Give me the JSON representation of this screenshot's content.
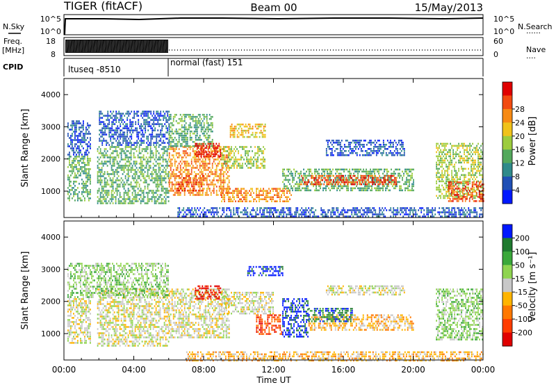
{
  "header": {
    "title": "TIGER (fitACF)",
    "beam": "Beam 00",
    "date": "15/May/2013"
  },
  "left_labels": {
    "nsky": "N.Sky",
    "freq_line1": "Freq.",
    "freq_line2": "[MHz]",
    "cpid": "CPID"
  },
  "right_labels": {
    "nsearch": "N.Search",
    "nave": "Nave",
    "legend_dots": "......",
    "nave_dots": "...."
  },
  "nsky_ticks": [
    "10^5",
    "10^0"
  ],
  "nsearch_ticks": [
    "10^5",
    "10^0"
  ],
  "freq_ticks": [
    "18",
    "8"
  ],
  "nave_ticks": [
    "60",
    "0"
  ],
  "cpid": [
    {
      "label": "ltuseq -8510",
      "start_hour": 0,
      "end_hour": 6
    },
    {
      "label": "normal (fast) 151",
      "start_hour": 6,
      "end_hour": 24
    }
  ],
  "x_axis": {
    "label": "Time UT",
    "ticks": [
      "00:00",
      "04:00",
      "08:00",
      "12:00",
      "16:00",
      "20:00",
      "00:00"
    ],
    "tick_hours": [
      0,
      4,
      8,
      12,
      16,
      20,
      24
    ]
  },
  "chart_data": [
    {
      "type": "heatmap",
      "name": "power",
      "ylabel": "Slant Range [km]",
      "ylim": [
        180,
        4500
      ],
      "yticks": [
        1000,
        2000,
        3000,
        4000
      ],
      "xlim": [
        0,
        24
      ],
      "colorbar": {
        "label": "Power [dB]",
        "ticks": [
          "4",
          "8",
          "12",
          "16",
          "20",
          "24",
          "28"
        ],
        "colors": [
          "#0018ff",
          "#1f4fb5",
          "#2f8a8a",
          "#53a85c",
          "#9ccc3d",
          "#f0c21a",
          "#f78a14",
          "#f24a10",
          "#e00000"
        ]
      },
      "bands": [
        {
          "h0": 0.2,
          "h1": 1.5,
          "r0": 700,
          "r1": 2100,
          "c": 3
        },
        {
          "h0": 0.2,
          "h1": 1.5,
          "r0": 2100,
          "r1": 3200,
          "c": 1
        },
        {
          "h0": 1.9,
          "h1": 6.0,
          "r0": 600,
          "r1": 2400,
          "c": 3
        },
        {
          "h0": 2.0,
          "h1": 6.0,
          "r0": 2400,
          "r1": 3500,
          "c": 1
        },
        {
          "h0": 6.0,
          "h1": 9.5,
          "r0": 900,
          "r1": 2400,
          "c": 6
        },
        {
          "h0": 6.0,
          "h1": 8.5,
          "r0": 2400,
          "r1": 3400,
          "c": 3
        },
        {
          "h0": 7.5,
          "h1": 9.0,
          "r0": 2100,
          "r1": 2500,
          "c": 8
        },
        {
          "h0": 6.5,
          "h1": 8.0,
          "r0": 1000,
          "r1": 1500,
          "c": 7
        },
        {
          "h0": 9.0,
          "h1": 11.5,
          "r0": 1700,
          "r1": 2400,
          "c": 4
        },
        {
          "h0": 9.5,
          "h1": 11.5,
          "r0": 2700,
          "r1": 3100,
          "c": 5
        },
        {
          "h0": 9.0,
          "h1": 13.0,
          "r0": 700,
          "r1": 1100,
          "c": 6
        },
        {
          "h0": 12.5,
          "h1": 20.0,
          "r0": 1000,
          "r1": 1700,
          "c": 3
        },
        {
          "h0": 13.5,
          "h1": 19.0,
          "r0": 1200,
          "r1": 1500,
          "c": 7
        },
        {
          "h0": 15.0,
          "h1": 19.5,
          "r0": 2100,
          "r1": 2600,
          "c": 1
        },
        {
          "h0": 21.3,
          "h1": 24.0,
          "r0": 800,
          "r1": 2500,
          "c": 4
        },
        {
          "h0": 22.0,
          "h1": 24.0,
          "r0": 700,
          "r1": 1300,
          "c": 7
        },
        {
          "h0": 6.5,
          "h1": 24.0,
          "r0": 180,
          "r1": 500,
          "c": 1
        }
      ]
    },
    {
      "type": "heatmap",
      "name": "velocity",
      "ylabel": "Slant Range [km]",
      "ylim": [
        180,
        4500
      ],
      "yticks": [
        1000,
        2000,
        3000,
        4000
      ],
      "xlim": [
        0,
        24
      ],
      "colorbar": {
        "label": "Velocity [m s⁻¹]",
        "ticks": [
          "200",
          "100",
          "50",
          "15",
          "-15",
          "-50",
          "-100",
          "-200"
        ],
        "colors": [
          "#0018ff",
          "#1f7a2f",
          "#3aa83a",
          "#8fd450",
          "#c8c8c8",
          "#ffb400",
          "#ff7800",
          "#ff3c00",
          "#e00000"
        ]
      },
      "bands": [
        {
          "h0": 0.2,
          "h1": 1.5,
          "r0": 700,
          "r1": 2100,
          "c": 4
        },
        {
          "h0": 1.9,
          "h1": 6.0,
          "r0": 600,
          "r1": 2400,
          "c": 4
        },
        {
          "h0": 0.2,
          "h1": 6.0,
          "r0": 2100,
          "r1": 3200,
          "c": 3
        },
        {
          "h0": 6.0,
          "h1": 9.5,
          "r0": 900,
          "r1": 2400,
          "c": 4
        },
        {
          "h0": 7.5,
          "h1": 9.0,
          "r0": 2100,
          "r1": 2500,
          "c": 8
        },
        {
          "h0": 9.0,
          "h1": 12.0,
          "r0": 1600,
          "r1": 2300,
          "c": 4
        },
        {
          "h0": 11.0,
          "h1": 12.5,
          "r0": 1000,
          "r1": 1600,
          "c": 7
        },
        {
          "h0": 12.5,
          "h1": 14.0,
          "r0": 900,
          "r1": 2100,
          "c": 0
        },
        {
          "h0": 14.0,
          "h1": 20.0,
          "r0": 1100,
          "r1": 1600,
          "c": 5
        },
        {
          "h0": 14.0,
          "h1": 16.5,
          "r0": 1400,
          "r1": 1800,
          "c": 1
        },
        {
          "h0": 15.0,
          "h1": 19.5,
          "r0": 2200,
          "r1": 2500,
          "c": 4
        },
        {
          "h0": 10.5,
          "h1": 12.5,
          "r0": 2800,
          "r1": 3100,
          "c": 0
        },
        {
          "h0": 21.3,
          "h1": 24.0,
          "r0": 800,
          "r1": 2400,
          "c": 3
        },
        {
          "h0": 7.0,
          "h1": 24.0,
          "r0": 180,
          "r1": 450,
          "c": 5
        }
      ]
    }
  ]
}
